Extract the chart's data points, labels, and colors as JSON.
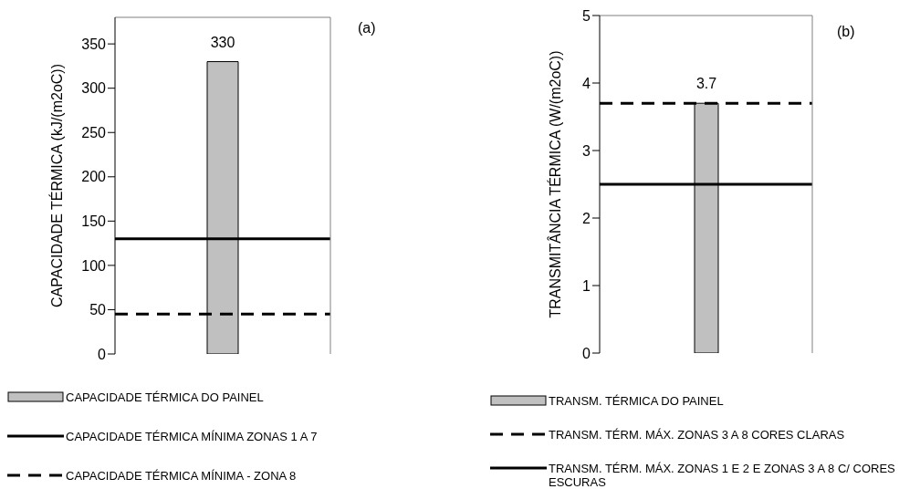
{
  "chart_data": [
    {
      "type": "bar",
      "categories": [
        null
      ],
      "ylabel": "CAPACIDADE TÉRMICA  (kJ/(m2oC))",
      "ylim": [
        0,
        380
      ],
      "yticks": [
        0,
        50,
        100,
        150,
        200,
        250,
        300,
        350
      ],
      "data_labels": true,
      "legend": "bottom",
      "annotations": [
        "(a)"
      ],
      "series": [
        {
          "name": "CAPACIDADE TÉRMICA DO PAINEL",
          "color": "#c0c0c0",
          "values": [
            330
          ]
        }
      ],
      "ref_lines": [
        {
          "axis": "y",
          "value": 130,
          "label": "CAPACIDADE TÉRMICA MÍNIMA ZONAS 1 A 7",
          "color": "#000000",
          "line_style": "solid"
        },
        {
          "axis": "y",
          "value": 45,
          "label": "CAPACIDADE TÉRMICA MÍNIMA - ZONA 8",
          "color": "#000000",
          "line_style": "dashed"
        }
      ]
    },
    {
      "type": "bar",
      "categories": [
        null
      ],
      "ylabel": "TRANSMITÂNCIA TÉRMICA (W/(m2oC))",
      "ylim": [
        0,
        5
      ],
      "yticks": [
        0,
        1,
        2,
        3,
        4,
        5
      ],
      "data_labels": true,
      "legend": "bottom",
      "annotations": [
        "(b)"
      ],
      "series": [
        {
          "name": "TRANSM. TÉRMICA DO PAINEL",
          "color": "#c0c0c0",
          "values": [
            3.7
          ]
        }
      ],
      "ref_lines": [
        {
          "axis": "y",
          "value": 3.7,
          "label": "TRANSM. TÉRM. MÁX. ZONAS 3 A 8 CORES CLARAS",
          "color": "#000000",
          "line_style": "dashed"
        },
        {
          "axis": "y",
          "value": 2.5,
          "label": "TRANSM. TÉRM. MÁX. ZONAS 1 E 2 E ZONAS 3 A 8 C/ CORES ESCURAS",
          "color": "#000000",
          "line_style": "solid"
        }
      ]
    }
  ]
}
